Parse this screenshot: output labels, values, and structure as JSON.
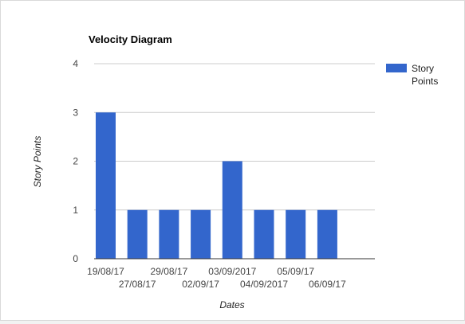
{
  "chart_data": {
    "type": "bar",
    "title": "Velocity Diagram",
    "xlabel": "Dates",
    "ylabel": "Story Points",
    "categories": [
      "19/08/17",
      "27/08/17",
      "29/08/17",
      "02/09/17",
      "03/09/2017",
      "04/09/2017",
      "05/09/17",
      "06/09/17"
    ],
    "series": [
      {
        "name": "Story Points",
        "values": [
          3,
          1,
          1,
          1,
          2,
          1,
          1,
          1
        ]
      }
    ],
    "ylim": [
      0,
      4
    ],
    "yticks": [
      "0",
      "1",
      "2",
      "3",
      "4"
    ],
    "grid": true,
    "legend": "right",
    "legend_lines": [
      "Story",
      "Points"
    ],
    "colors": {
      "bar": "#3366cc",
      "grid": "#cccccc",
      "axis": "#333333"
    }
  }
}
